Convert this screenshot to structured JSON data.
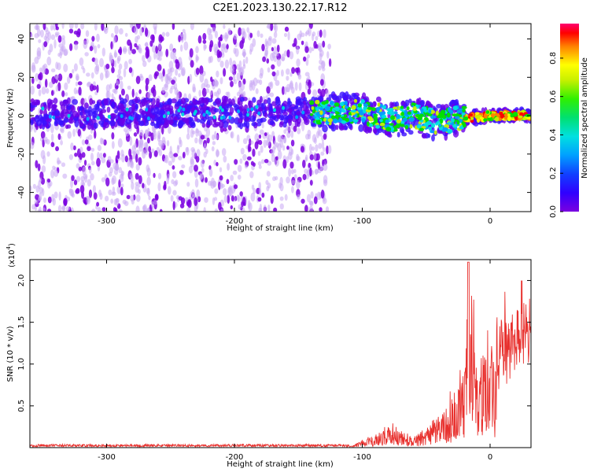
{
  "title": "C2E1.2023.130.22.17.R12",
  "chart_data": [
    {
      "type": "heatmap",
      "title": "C2E1.2023.130.22.17.R12",
      "xlabel": "Height of straight line (km)",
      "ylabel": "Frequency (Hz)",
      "xlim": [
        -360,
        32
      ],
      "ylim": [
        -50,
        48
      ],
      "xticks": [
        -300,
        -200,
        -100,
        0
      ],
      "yticks": [
        -40,
        -20,
        0,
        20,
        40
      ],
      "colorbar": {
        "label": "Normalized spectral amplitude",
        "range": [
          0.0,
          0.98
        ],
        "ticks": [
          0.0,
          0.2,
          0.4,
          0.6,
          0.8
        ],
        "colormap": [
          "#7a00e0",
          "#1000ff",
          "#00a0ff",
          "#00e0e0",
          "#00e000",
          "#c8f000",
          "#ffff00",
          "#ff8000",
          "#ff0000",
          "#ff0070"
        ]
      },
      "ridge_center_hz": [
        {
          "x": -360,
          "y": 1
        },
        {
          "x": -130,
          "y": 2
        },
        {
          "x": -100,
          "y": 2
        },
        {
          "x": -75,
          "y": -2
        },
        {
          "x": -60,
          "y": 0
        },
        {
          "x": -40,
          "y": -4
        },
        {
          "x": -30,
          "y": -2
        },
        {
          "x": 0,
          "y": 0
        },
        {
          "x": 32,
          "y": 0
        }
      ],
      "sparse_noise_xlim": [
        -360,
        -125
      ],
      "grid": false
    },
    {
      "type": "line",
      "xlabel": "Height of straight line (km)",
      "ylabel": "SNR (10 * v/v)",
      "y_multiplier": "(x10",
      "y_multiplier_exp": "4",
      "y_multiplier_close": ")",
      "xlim": [
        -360,
        32
      ],
      "ylim": [
        0,
        2.25
      ],
      "xticks": [
        -300,
        -200,
        -100,
        0
      ],
      "yticks": [
        0.5,
        1.0,
        1.5,
        2.0
      ],
      "ytick_labels": [
        "0.5",
        "1.0",
        "1.5",
        "2.0"
      ],
      "color": "#e8312e",
      "series": [
        {
          "x": [
            -360,
            -110,
            -100,
            -90,
            -80,
            -70,
            -60,
            -50,
            -40,
            -30,
            -20,
            -17,
            -10,
            0,
            10,
            20,
            32
          ],
          "y": [
            0.01,
            0.01,
            0.08,
            0.15,
            0.25,
            0.2,
            0.12,
            0.25,
            0.4,
            0.6,
            1.0,
            2.22,
            1.1,
            1.3,
            1.45,
            1.55,
            1.72
          ]
        }
      ],
      "grid": false
    }
  ]
}
